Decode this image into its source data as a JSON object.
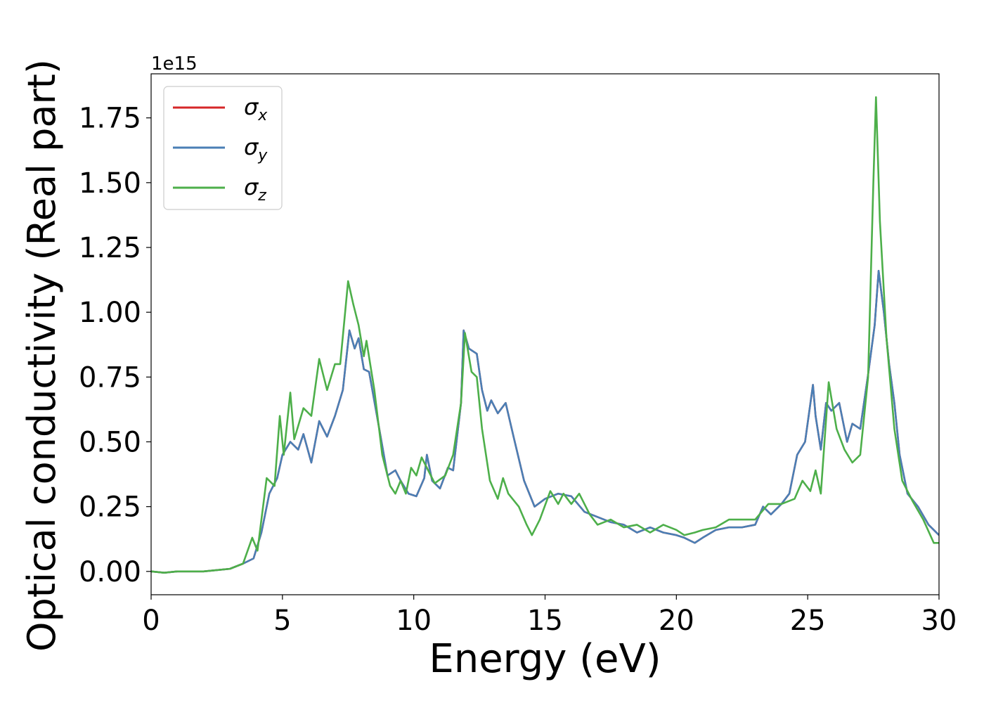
{
  "chart_data": {
    "type": "line",
    "title": "",
    "xlabel": "Energy (eV)",
    "ylabel": "Optical conductivity (Real part)",
    "y_offset_label": "1e15",
    "y_scale": 1000000000000000.0,
    "xlim": [
      0,
      30
    ],
    "ylim": [
      -0.09,
      1.92
    ],
    "x_ticks": [
      0,
      5,
      10,
      15,
      20,
      25,
      30
    ],
    "x_tick_labels": [
      "0",
      "5",
      "10",
      "15",
      "20",
      "25",
      "30"
    ],
    "y_ticks": [
      0.0,
      0.25,
      0.5,
      0.75,
      1.0,
      1.25,
      1.5,
      1.75
    ],
    "y_tick_labels": [
      "0.00",
      "0.25",
      "0.50",
      "0.75",
      "1.00",
      "1.25",
      "1.50",
      "1.75"
    ],
    "grid": false,
    "legend_position": "top-left",
    "series": [
      {
        "name": "σx",
        "base": "σ",
        "sub": "x",
        "color": "#d62728",
        "points": [
          [
            0,
            0
          ],
          [
            0.5,
            -0.005
          ],
          [
            1,
            0
          ],
          [
            2,
            0
          ],
          [
            3,
            0.01
          ],
          [
            3.5,
            0.03
          ],
          [
            3.9,
            0.05
          ],
          [
            4.2,
            0.15
          ],
          [
            4.5,
            0.3
          ],
          [
            4.8,
            0.36
          ],
          [
            5,
            0.45
          ],
          [
            5.3,
            0.5
          ],
          [
            5.6,
            0.47
          ],
          [
            5.8,
            0.53
          ],
          [
            6.1,
            0.42
          ],
          [
            6.4,
            0.58
          ],
          [
            6.7,
            0.52
          ],
          [
            7,
            0.6
          ],
          [
            7.3,
            0.7
          ],
          [
            7.55,
            0.93
          ],
          [
            7.75,
            0.86
          ],
          [
            7.9,
            0.9
          ],
          [
            8.1,
            0.78
          ],
          [
            8.3,
            0.77
          ],
          [
            8.6,
            0.6
          ],
          [
            9,
            0.37
          ],
          [
            9.3,
            0.39
          ],
          [
            9.5,
            0.35
          ],
          [
            9.8,
            0.3
          ],
          [
            10.1,
            0.29
          ],
          [
            10.4,
            0.36
          ],
          [
            10.5,
            0.45
          ],
          [
            10.7,
            0.35
          ],
          [
            11,
            0.32
          ],
          [
            11.3,
            0.4
          ],
          [
            11.5,
            0.39
          ],
          [
            11.8,
            0.65
          ],
          [
            11.9,
            0.93
          ],
          [
            12.1,
            0.86
          ],
          [
            12.4,
            0.84
          ],
          [
            12.6,
            0.7
          ],
          [
            12.8,
            0.62
          ],
          [
            12.95,
            0.66
          ],
          [
            13.2,
            0.61
          ],
          [
            13.5,
            0.65
          ],
          [
            13.8,
            0.52
          ],
          [
            14.2,
            0.35
          ],
          [
            14.6,
            0.25
          ],
          [
            15,
            0.28
          ],
          [
            15.5,
            0.3
          ],
          [
            16,
            0.29
          ],
          [
            16.5,
            0.23
          ],
          [
            17,
            0.21
          ],
          [
            17.5,
            0.19
          ],
          [
            18,
            0.18
          ],
          [
            18.5,
            0.15
          ],
          [
            19,
            0.17
          ],
          [
            19.5,
            0.15
          ],
          [
            20,
            0.14
          ],
          [
            20.3,
            0.13
          ],
          [
            20.7,
            0.11
          ],
          [
            21,
            0.13
          ],
          [
            21.5,
            0.16
          ],
          [
            22,
            0.17
          ],
          [
            22.5,
            0.17
          ],
          [
            23,
            0.18
          ],
          [
            23.3,
            0.25
          ],
          [
            23.6,
            0.22
          ],
          [
            24,
            0.26
          ],
          [
            24.3,
            0.3
          ],
          [
            24.6,
            0.45
          ],
          [
            24.9,
            0.5
          ],
          [
            25.2,
            0.72
          ],
          [
            25.3,
            0.6
          ],
          [
            25.5,
            0.47
          ],
          [
            25.7,
            0.65
          ],
          [
            25.9,
            0.62
          ],
          [
            26.2,
            0.65
          ],
          [
            26.5,
            0.5
          ],
          [
            26.7,
            0.57
          ],
          [
            27,
            0.55
          ],
          [
            27.3,
            0.76
          ],
          [
            27.55,
            0.95
          ],
          [
            27.7,
            1.16
          ],
          [
            27.9,
            1.0
          ],
          [
            28.1,
            0.8
          ],
          [
            28.3,
            0.65
          ],
          [
            28.5,
            0.45
          ],
          [
            28.8,
            0.3
          ],
          [
            29.2,
            0.25
          ],
          [
            29.6,
            0.18
          ],
          [
            30,
            0.14
          ]
        ]
      },
      {
        "name": "σy",
        "base": "σ",
        "sub": "y",
        "color": "#4a7fb5",
        "points": [
          [
            0,
            0
          ],
          [
            0.5,
            -0.005
          ],
          [
            1,
            0
          ],
          [
            2,
            0
          ],
          [
            3,
            0.01
          ],
          [
            3.5,
            0.03
          ],
          [
            3.9,
            0.05
          ],
          [
            4.2,
            0.15
          ],
          [
            4.5,
            0.3
          ],
          [
            4.8,
            0.36
          ],
          [
            5,
            0.45
          ],
          [
            5.3,
            0.5
          ],
          [
            5.6,
            0.47
          ],
          [
            5.8,
            0.53
          ],
          [
            6.1,
            0.42
          ],
          [
            6.4,
            0.58
          ],
          [
            6.7,
            0.52
          ],
          [
            7,
            0.6
          ],
          [
            7.3,
            0.7
          ],
          [
            7.55,
            0.93
          ],
          [
            7.75,
            0.86
          ],
          [
            7.9,
            0.9
          ],
          [
            8.1,
            0.78
          ],
          [
            8.3,
            0.77
          ],
          [
            8.6,
            0.6
          ],
          [
            9,
            0.37
          ],
          [
            9.3,
            0.39
          ],
          [
            9.5,
            0.35
          ],
          [
            9.8,
            0.3
          ],
          [
            10.1,
            0.29
          ],
          [
            10.4,
            0.36
          ],
          [
            10.5,
            0.45
          ],
          [
            10.7,
            0.35
          ],
          [
            11,
            0.32
          ],
          [
            11.3,
            0.4
          ],
          [
            11.5,
            0.39
          ],
          [
            11.8,
            0.65
          ],
          [
            11.9,
            0.93
          ],
          [
            12.1,
            0.86
          ],
          [
            12.4,
            0.84
          ],
          [
            12.6,
            0.7
          ],
          [
            12.8,
            0.62
          ],
          [
            12.95,
            0.66
          ],
          [
            13.2,
            0.61
          ],
          [
            13.5,
            0.65
          ],
          [
            13.8,
            0.52
          ],
          [
            14.2,
            0.35
          ],
          [
            14.6,
            0.25
          ],
          [
            15,
            0.28
          ],
          [
            15.5,
            0.3
          ],
          [
            16,
            0.29
          ],
          [
            16.5,
            0.23
          ],
          [
            17,
            0.21
          ],
          [
            17.5,
            0.19
          ],
          [
            18,
            0.18
          ],
          [
            18.5,
            0.15
          ],
          [
            19,
            0.17
          ],
          [
            19.5,
            0.15
          ],
          [
            20,
            0.14
          ],
          [
            20.3,
            0.13
          ],
          [
            20.7,
            0.11
          ],
          [
            21,
            0.13
          ],
          [
            21.5,
            0.16
          ],
          [
            22,
            0.17
          ],
          [
            22.5,
            0.17
          ],
          [
            23,
            0.18
          ],
          [
            23.3,
            0.25
          ],
          [
            23.6,
            0.22
          ],
          [
            24,
            0.26
          ],
          [
            24.3,
            0.3
          ],
          [
            24.6,
            0.45
          ],
          [
            24.9,
            0.5
          ],
          [
            25.2,
            0.72
          ],
          [
            25.3,
            0.6
          ],
          [
            25.5,
            0.47
          ],
          [
            25.7,
            0.65
          ],
          [
            25.9,
            0.62
          ],
          [
            26.2,
            0.65
          ],
          [
            26.5,
            0.5
          ],
          [
            26.7,
            0.57
          ],
          [
            27,
            0.55
          ],
          [
            27.3,
            0.76
          ],
          [
            27.55,
            0.95
          ],
          [
            27.7,
            1.16
          ],
          [
            27.9,
            1.0
          ],
          [
            28.1,
            0.8
          ],
          [
            28.3,
            0.65
          ],
          [
            28.5,
            0.45
          ],
          [
            28.8,
            0.3
          ],
          [
            29.2,
            0.25
          ],
          [
            29.6,
            0.18
          ],
          [
            30,
            0.14
          ]
        ]
      },
      {
        "name": "σz",
        "base": "σ",
        "sub": "z",
        "color": "#4daf4a",
        "points": [
          [
            0,
            0
          ],
          [
            0.5,
            -0.005
          ],
          [
            1,
            0
          ],
          [
            2,
            0
          ],
          [
            3,
            0.01
          ],
          [
            3.5,
            0.03
          ],
          [
            3.85,
            0.13
          ],
          [
            4.05,
            0.08
          ],
          [
            4.4,
            0.36
          ],
          [
            4.7,
            0.33
          ],
          [
            4.9,
            0.6
          ],
          [
            5.05,
            0.45
          ],
          [
            5.3,
            0.69
          ],
          [
            5.45,
            0.51
          ],
          [
            5.8,
            0.63
          ],
          [
            6.1,
            0.6
          ],
          [
            6.4,
            0.82
          ],
          [
            6.7,
            0.7
          ],
          [
            7,
            0.8
          ],
          [
            7.2,
            0.8
          ],
          [
            7.5,
            1.12
          ],
          [
            7.7,
            1.03
          ],
          [
            7.9,
            0.95
          ],
          [
            8.1,
            0.83
          ],
          [
            8.2,
            0.89
          ],
          [
            8.5,
            0.7
          ],
          [
            8.8,
            0.45
          ],
          [
            9.1,
            0.33
          ],
          [
            9.3,
            0.3
          ],
          [
            9.5,
            0.35
          ],
          [
            9.7,
            0.3
          ],
          [
            9.9,
            0.4
          ],
          [
            10.1,
            0.37
          ],
          [
            10.3,
            0.44
          ],
          [
            10.5,
            0.4
          ],
          [
            10.8,
            0.34
          ],
          [
            11.2,
            0.37
          ],
          [
            11.5,
            0.45
          ],
          [
            11.8,
            0.65
          ],
          [
            11.95,
            0.92
          ],
          [
            12.2,
            0.77
          ],
          [
            12.4,
            0.75
          ],
          [
            12.6,
            0.55
          ],
          [
            12.9,
            0.35
          ],
          [
            13.2,
            0.28
          ],
          [
            13.4,
            0.36
          ],
          [
            13.6,
            0.3
          ],
          [
            14,
            0.25
          ],
          [
            14.3,
            0.18
          ],
          [
            14.5,
            0.14
          ],
          [
            14.8,
            0.2
          ],
          [
            15.2,
            0.31
          ],
          [
            15.5,
            0.26
          ],
          [
            15.7,
            0.3
          ],
          [
            16,
            0.26
          ],
          [
            16.3,
            0.3
          ],
          [
            16.7,
            0.22
          ],
          [
            17,
            0.18
          ],
          [
            17.5,
            0.2
          ],
          [
            18,
            0.17
          ],
          [
            18.5,
            0.18
          ],
          [
            19,
            0.15
          ],
          [
            19.5,
            0.18
          ],
          [
            20,
            0.16
          ],
          [
            20.3,
            0.14
          ],
          [
            20.7,
            0.15
          ],
          [
            21,
            0.16
          ],
          [
            21.5,
            0.17
          ],
          [
            22,
            0.2
          ],
          [
            22.5,
            0.2
          ],
          [
            23,
            0.2
          ],
          [
            23.5,
            0.26
          ],
          [
            24,
            0.26
          ],
          [
            24.5,
            0.28
          ],
          [
            24.8,
            0.35
          ],
          [
            25.1,
            0.31
          ],
          [
            25.3,
            0.39
          ],
          [
            25.5,
            0.3
          ],
          [
            25.8,
            0.73
          ],
          [
            26.1,
            0.55
          ],
          [
            26.4,
            0.47
          ],
          [
            26.7,
            0.42
          ],
          [
            27,
            0.45
          ],
          [
            27.3,
            0.75
          ],
          [
            27.5,
            1.5
          ],
          [
            27.6,
            1.83
          ],
          [
            27.75,
            1.35
          ],
          [
            28,
            0.9
          ],
          [
            28.3,
            0.55
          ],
          [
            28.6,
            0.35
          ],
          [
            29,
            0.27
          ],
          [
            29.4,
            0.2
          ],
          [
            29.8,
            0.11
          ],
          [
            30,
            0.11
          ]
        ]
      }
    ]
  }
}
